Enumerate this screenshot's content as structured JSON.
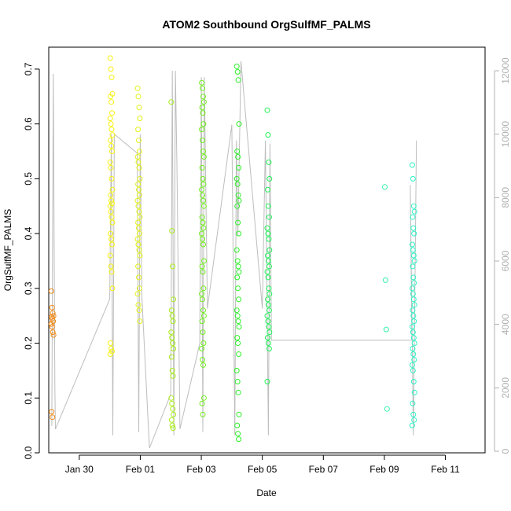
{
  "chart_data": {
    "type": "scatter",
    "title": "ATOM2 Southbound OrgSulfMF_PALMS",
    "xlabel": "Date",
    "ylabel": "OrgSulfMF_PALMS",
    "x_ticks": [
      "Jan 30",
      "Feb 01",
      "Feb 03",
      "Feb 05",
      "Feb 07",
      "Feb 09",
      "Feb 11"
    ],
    "y_ticks": [
      "0.0",
      "0.1",
      "0.2",
      "0.3",
      "0.4",
      "0.5",
      "0.6",
      "0.7"
    ],
    "y2_ticks": [
      "0",
      "2000",
      "4000",
      "6000",
      "8000",
      "10000",
      "12000"
    ],
    "ylim": [
      0,
      0.74
    ],
    "y2lim": [
      0,
      12000
    ],
    "xlim_days_from_jan29": [
      0.0,
      14.3
    ],
    "secondary_series_color": "#bdbdbd",
    "point_colors": {
      "flight_jan29": "#f28b1a",
      "flight_feb01": "#f6f212",
      "flight_feb02": "#e2f219",
      "flight_feb03": "#a8ee18",
      "flight_feb04": "#6ff01a",
      "flight_feb05": "#2df12a",
      "flight_feb06": "#21f05a",
      "flight_feb10": "#33f0a8",
      "flight_feb11": "#2ef3c7"
    },
    "series": [
      {
        "x": 0.12,
        "values": [
          0.295,
          0.265,
          0.255,
          0.25,
          0.248,
          0.245,
          0.24,
          0.235,
          0.23,
          0.22,
          0.215,
          0.075,
          0.065
        ]
      },
      {
        "x": 2.05,
        "values": [
          0.72,
          0.7,
          0.685,
          0.655,
          0.65,
          0.64,
          0.62,
          0.61,
          0.6,
          0.59,
          0.58,
          0.57,
          0.56,
          0.55,
          0.53,
          0.52,
          0.5,
          0.48,
          0.47,
          0.46,
          0.455,
          0.45,
          0.44,
          0.43,
          0.42,
          0.4,
          0.39,
          0.38,
          0.36,
          0.34,
          0.33,
          0.3,
          0.2,
          0.19,
          0.185,
          0.18
        ]
      },
      {
        "x": 2.95,
        "values": [
          0.665,
          0.65,
          0.63,
          0.61,
          0.59,
          0.57,
          0.55,
          0.54,
          0.53,
          0.52,
          0.5,
          0.49,
          0.48,
          0.47,
          0.46,
          0.45,
          0.44,
          0.43,
          0.42,
          0.41,
          0.4,
          0.39,
          0.38,
          0.37,
          0.36,
          0.34,
          0.32,
          0.3,
          0.29,
          0.27,
          0.26,
          0.24
        ]
      },
      {
        "x": 4.05,
        "values": [
          0.64,
          0.405,
          0.34,
          0.28,
          0.26,
          0.25,
          0.24,
          0.22,
          0.21,
          0.2,
          0.19,
          0.175,
          0.15,
          0.14,
          0.1,
          0.09,
          0.08,
          0.07,
          0.06,
          0.05,
          0.045
        ]
      },
      {
        "x": 5.05,
        "values": [
          0.675,
          0.665,
          0.65,
          0.64,
          0.63,
          0.62,
          0.6,
          0.59,
          0.57,
          0.55,
          0.54,
          0.52,
          0.5,
          0.49,
          0.48,
          0.47,
          0.46,
          0.45,
          0.43,
          0.42,
          0.41,
          0.4,
          0.39,
          0.38,
          0.35,
          0.34,
          0.33,
          0.3,
          0.29,
          0.28,
          0.26,
          0.25,
          0.24,
          0.22,
          0.2,
          0.19,
          0.17,
          0.16,
          0.1,
          0.09,
          0.07
        ]
      },
      {
        "x": 6.2,
        "values": [
          0.705,
          0.695,
          0.68,
          0.6,
          0.55,
          0.54,
          0.52,
          0.5,
          0.49,
          0.47,
          0.46,
          0.45,
          0.42,
          0.4,
          0.37,
          0.35,
          0.34,
          0.33,
          0.32,
          0.3,
          0.28,
          0.26,
          0.25,
          0.24,
          0.23,
          0.21,
          0.2,
          0.18,
          0.15,
          0.13,
          0.11,
          0.07,
          0.05,
          0.035,
          0.025
        ]
      },
      {
        "x": 7.2,
        "values": [
          0.625,
          0.58,
          0.53,
          0.5,
          0.48,
          0.45,
          0.43,
          0.41,
          0.4,
          0.39,
          0.37,
          0.36,
          0.35,
          0.34,
          0.33,
          0.32,
          0.3,
          0.29,
          0.28,
          0.27,
          0.26,
          0.25,
          0.24,
          0.23,
          0.22,
          0.21,
          0.2,
          0.19,
          0.13
        ]
      },
      {
        "x": 11.05,
        "values": [
          0.485,
          0.315,
          0.225,
          0.08
        ]
      },
      {
        "x": 11.95,
        "values": [
          0.525,
          0.5,
          0.45,
          0.44,
          0.43,
          0.41,
          0.4,
          0.38,
          0.37,
          0.36,
          0.35,
          0.34,
          0.32,
          0.31,
          0.3,
          0.29,
          0.28,
          0.27,
          0.26,
          0.25,
          0.24,
          0.23,
          0.22,
          0.21,
          0.2,
          0.19,
          0.18,
          0.17,
          0.16,
          0.15,
          0.13,
          0.11,
          0.09,
          0.07,
          0.06,
          0.05
        ]
      }
    ],
    "secondary_series": [
      [
        0.1,
        800
      ],
      [
        0.15,
        11900
      ],
      [
        0.2,
        2000
      ],
      [
        0.22,
        700
      ],
      [
        2.0,
        4800
      ],
      [
        2.05,
        10000
      ],
      [
        2.1,
        500
      ],
      [
        2.15,
        10000
      ],
      [
        2.9,
        9400
      ],
      [
        2.95,
        600
      ],
      [
        3.0,
        10000
      ],
      [
        3.05,
        4900
      ],
      [
        3.3,
        100
      ],
      [
        4.0,
        1800
      ],
      [
        4.05,
        12000
      ],
      [
        4.1,
        500
      ],
      [
        4.15,
        12000
      ],
      [
        4.2,
        9100
      ],
      [
        4.3,
        700
      ],
      [
        4.95,
        3400
      ],
      [
        5.0,
        11800
      ],
      [
        5.05,
        600
      ],
      [
        5.1,
        11800
      ],
      [
        5.2,
        4500
      ],
      [
        6.0,
        10300
      ],
      [
        6.1,
        500
      ],
      [
        6.15,
        9800
      ],
      [
        6.2,
        6800
      ],
      [
        6.3,
        12300
      ],
      [
        7.0,
        4500
      ],
      [
        7.1,
        9800
      ],
      [
        7.2,
        500
      ],
      [
        7.25,
        9700
      ],
      [
        7.3,
        3500
      ],
      [
        11.9,
        3500
      ],
      [
        11.85,
        8400
      ],
      [
        11.95,
        500
      ],
      [
        12.05,
        9800
      ]
    ]
  }
}
